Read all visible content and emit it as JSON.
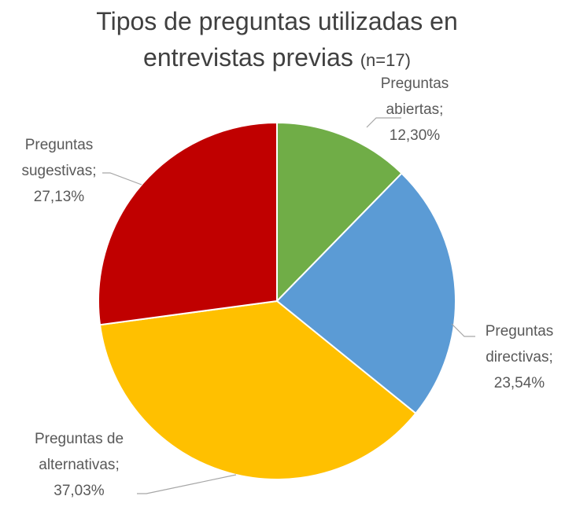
{
  "chart_data": {
    "type": "pie",
    "title": "Tipos de preguntas utilizadas en entrevistas previas",
    "subtitle": "(n=17)",
    "categories": [
      "Preguntas abiertas",
      "Preguntas directivas",
      "Preguntas de alternativas",
      "Preguntas sugestivas"
    ],
    "values": [
      12.3,
      23.54,
      37.03,
      27.13
    ],
    "value_labels": [
      "12,30%",
      "23,54%",
      "37,03%",
      "27,13%"
    ],
    "label_separator": ";",
    "colors": [
      "#70ad47",
      "#5b9bd5",
      "#ffc000",
      "#c00000"
    ]
  }
}
